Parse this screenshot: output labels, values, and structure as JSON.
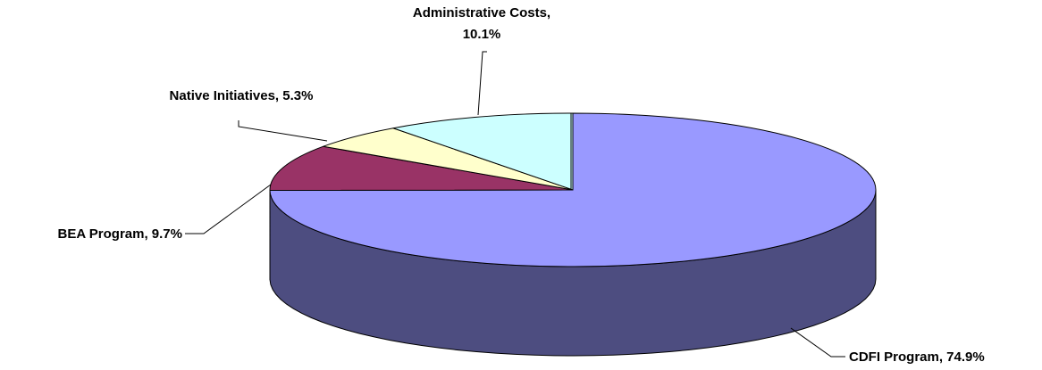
{
  "chart_data": {
    "type": "pie",
    "title": "",
    "three_d": true,
    "slices": [
      {
        "label": "CDFI Program, 74.9%",
        "category": "CDFI Program",
        "value": 74.9,
        "top_color": "#9999ff",
        "side_color": "#4d4d80"
      },
      {
        "label": "BEA Program, 9.7%",
        "category": "BEA Program",
        "value": 9.7,
        "top_color": "#993366",
        "side_color": "#4d1a33"
      },
      {
        "label": "Native Initiatives, 5.3%",
        "category": "Native Initiatives",
        "value": 5.3,
        "top_color": "#ffffcc",
        "side_color": "#808066"
      },
      {
        "label_lines": [
          "Administrative Costs,",
          "10.1%"
        ],
        "category": "Administrative Costs",
        "value": 10.1,
        "top_color": "#ccffff",
        "side_color": "#668080"
      }
    ],
    "legend": "none",
    "edge_color": "#000000"
  }
}
